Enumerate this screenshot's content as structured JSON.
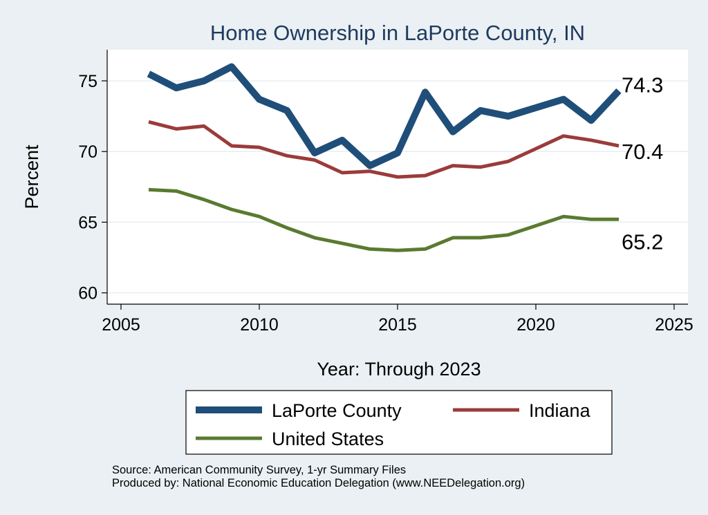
{
  "chart_data": {
    "type": "line",
    "title": "Home Ownership in LaPorte County, IN",
    "xlabel": "Year: Through 2023",
    "ylabel": "Percent",
    "xlim": [
      2005,
      2025
    ],
    "ylim": [
      59.2,
      77.2
    ],
    "x_ticks": [
      2005,
      2010,
      2015,
      2020,
      2025
    ],
    "y_ticks": [
      60,
      65,
      70,
      75
    ],
    "legend_position": "bottom",
    "series": [
      {
        "name": "LaPorte County",
        "color": "#1f4e79",
        "end_label": "74.3",
        "x": [
          2006,
          2007,
          2008,
          2009,
          2010,
          2011,
          2012,
          2013,
          2014,
          2015,
          2016,
          2017,
          2018,
          2019,
          2021,
          2022,
          2023
        ],
        "values": [
          75.5,
          74.5,
          75.0,
          76.0,
          73.7,
          72.9,
          69.9,
          70.8,
          69.0,
          69.9,
          74.2,
          71.4,
          72.9,
          72.5,
          73.7,
          72.2,
          74.3
        ]
      },
      {
        "name": "Indiana",
        "color": "#9b3b3b",
        "end_label": "70.4",
        "x": [
          2006,
          2007,
          2008,
          2009,
          2010,
          2011,
          2012,
          2013,
          2014,
          2015,
          2016,
          2017,
          2018,
          2019,
          2021,
          2022,
          2023
        ],
        "values": [
          72.1,
          71.6,
          71.8,
          70.4,
          70.3,
          69.7,
          69.4,
          68.5,
          68.6,
          68.2,
          68.3,
          69.0,
          68.9,
          69.3,
          71.1,
          70.8,
          70.4
        ]
      },
      {
        "name": "United States",
        "color": "#5a7a30",
        "end_label": "65.2",
        "x": [
          2006,
          2007,
          2008,
          2009,
          2010,
          2011,
          2012,
          2013,
          2014,
          2015,
          2016,
          2017,
          2018,
          2019,
          2021,
          2022,
          2023
        ],
        "values": [
          67.3,
          67.2,
          66.6,
          65.9,
          65.4,
          64.6,
          63.9,
          63.5,
          63.1,
          63.0,
          63.1,
          63.9,
          63.9,
          64.1,
          65.4,
          65.2,
          65.2
        ]
      }
    ]
  },
  "notes": {
    "source": "Source: American Community Survey, 1-yr Summary Files",
    "produced_by": "Produced by: National Economic Education Delegation (www.NEEDelegation.org)"
  }
}
